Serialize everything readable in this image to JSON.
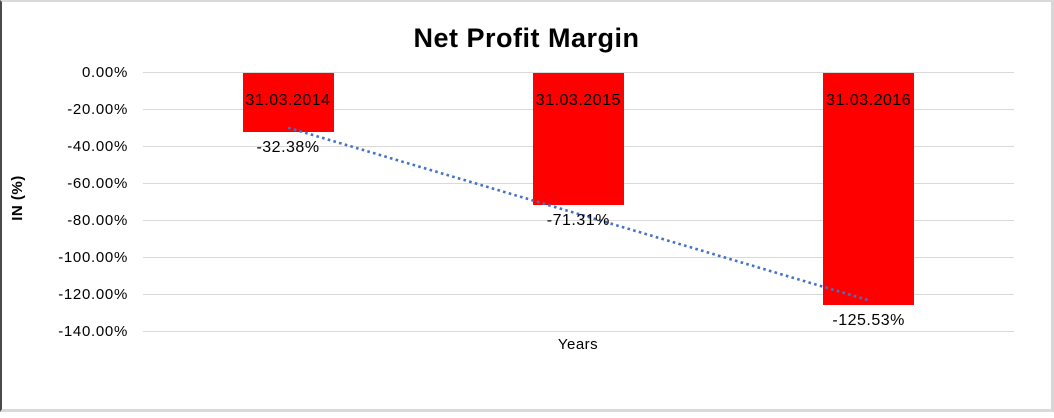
{
  "chart_data": {
    "type": "bar",
    "title": "Net Profit Margin",
    "xlabel": "Years",
    "ylabel": "IN (%)",
    "categories": [
      "31.03.2014",
      "31.03.2015",
      "31.03.2016"
    ],
    "values": [
      -32.38,
      -71.31,
      -125.53
    ],
    "data_labels": [
      "-32.38%",
      "-71.31%",
      "-125.53%"
    ],
    "y_ticks": [
      "0.00%",
      "-20.00%",
      "-40.00%",
      "-60.00%",
      "-80.00%",
      "-100.00%",
      "-120.00%",
      "-140.00%"
    ],
    "ylim": [
      -140,
      0
    ],
    "grid": true,
    "legend": "none",
    "bar_color": "#FF0000",
    "gridline_color": "#D9D9D9",
    "text_color": "#000000",
    "trendline": {
      "type": "linear",
      "style": "dotted",
      "color": "#4472C4",
      "start_value": -29.8,
      "end_value": -123.0
    }
  }
}
